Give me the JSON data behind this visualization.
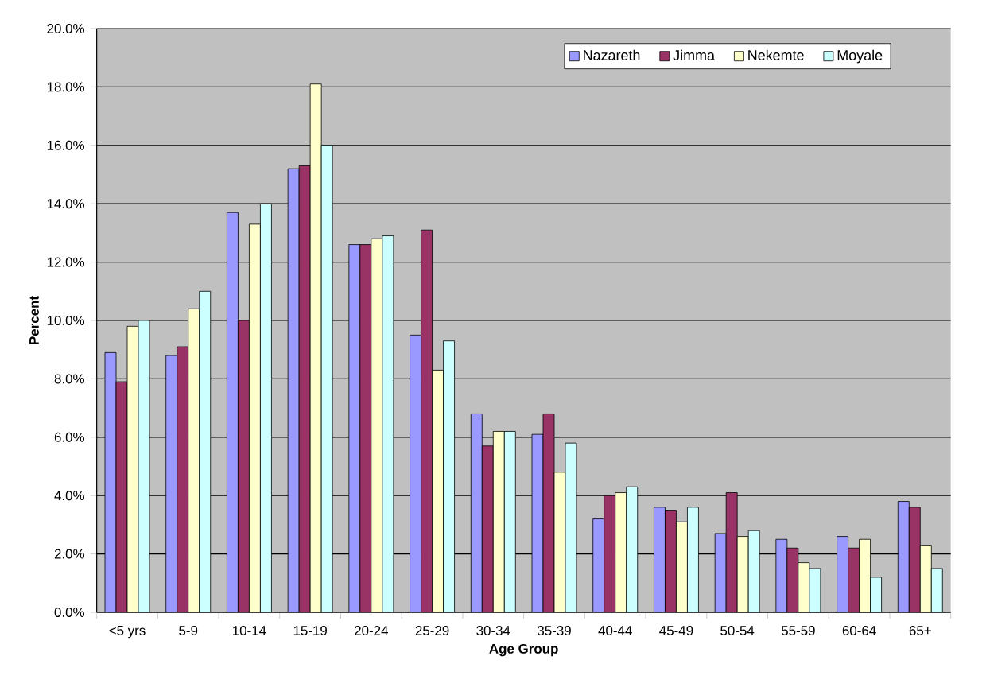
{
  "chart_data": {
    "type": "bar",
    "xlabel": "Age Group",
    "ylabel": "Percent",
    "categories": [
      "<5 yrs",
      "5-9",
      "10-14",
      "15-19",
      "20-24",
      "25-29",
      "30-34",
      "35-39",
      "40-44",
      "45-49",
      "50-54",
      "55-59",
      "60-64",
      "65+"
    ],
    "series": [
      {
        "name": "Nazareth",
        "color": "#9999ff",
        "values": [
          8.9,
          8.8,
          13.7,
          15.2,
          12.6,
          9.5,
          6.8,
          6.1,
          3.2,
          3.6,
          2.7,
          2.5,
          2.6,
          3.8
        ]
      },
      {
        "name": "Jimma",
        "color": "#993366",
        "values": [
          7.9,
          9.1,
          10.0,
          15.3,
          12.6,
          13.1,
          5.7,
          6.8,
          4.0,
          3.5,
          4.1,
          2.2,
          2.2,
          3.6
        ]
      },
      {
        "name": "Nekemte",
        "color": "#ffffcc",
        "values": [
          9.8,
          10.4,
          13.3,
          18.1,
          12.8,
          8.3,
          6.2,
          4.8,
          4.1,
          3.1,
          2.6,
          1.7,
          2.5,
          2.3
        ]
      },
      {
        "name": "Moyale",
        "color": "#ccffff",
        "values": [
          10.0,
          11.0,
          14.0,
          16.0,
          12.9,
          9.3,
          6.2,
          5.8,
          4.3,
          3.6,
          2.8,
          1.5,
          1.2,
          1.5
        ]
      }
    ],
    "ylim": [
      0,
      20
    ],
    "yticks": [
      {
        "value": 0,
        "label": "0.0%"
      },
      {
        "value": 2,
        "label": "2.0%"
      },
      {
        "value": 4,
        "label": "4.0%"
      },
      {
        "value": 6,
        "label": "6.0%"
      },
      {
        "value": 8,
        "label": "8.0%"
      },
      {
        "value": 10,
        "label": "10.0%"
      },
      {
        "value": 12,
        "label": "12.0%"
      },
      {
        "value": 14,
        "label": "14.0%"
      },
      {
        "value": 16,
        "label": "16.0%"
      },
      {
        "value": 18,
        "label": "18.0%"
      },
      {
        "value": 20,
        "label": "20.0%"
      }
    ],
    "grid": "y",
    "legend": "top right"
  }
}
